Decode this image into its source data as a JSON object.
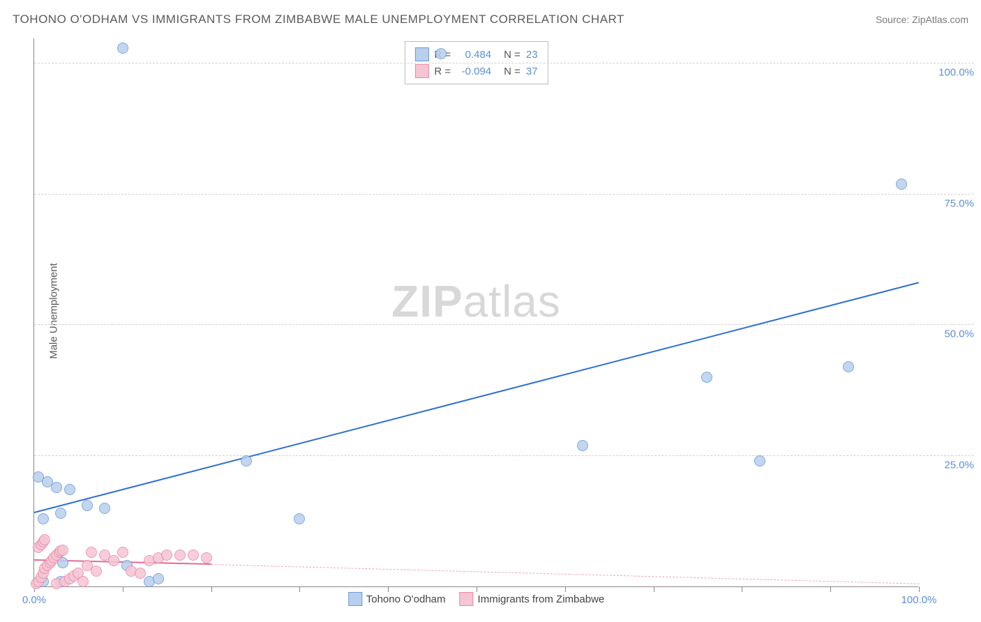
{
  "title": "TOHONO O'ODHAM VS IMMIGRANTS FROM ZIMBABWE MALE UNEMPLOYMENT CORRELATION CHART",
  "source": "Source: ZipAtlas.com",
  "ylabel": "Male Unemployment",
  "watermark": {
    "bold": "ZIP",
    "rest": "atlas"
  },
  "chart": {
    "type": "scatter",
    "xlim": [
      0,
      100
    ],
    "ylim": [
      0,
      105
    ],
    "xticks": [
      0,
      10,
      20,
      30,
      40,
      50,
      60,
      70,
      80,
      90,
      100
    ],
    "yticks": [
      25,
      50,
      75,
      100
    ],
    "ytick_labels": [
      "25.0%",
      "50.0%",
      "75.0%",
      "100.0%"
    ],
    "xtick_labels": {
      "0": "0.0%",
      "100": "100.0%"
    },
    "background": "#ffffff",
    "grid_color": "#d0d0d0",
    "axis_color": "#888888",
    "tick_font_color": "#5b8fd6",
    "label_font_color": "#5a5a5a"
  },
  "series": [
    {
      "name": "Tohono O'odham",
      "color_fill": "#b8d0ee",
      "color_stroke": "#6a9bd8",
      "marker_size": 14,
      "R": "0.484",
      "N": "23",
      "trend": {
        "x1": 0,
        "y1": 14,
        "x2": 100,
        "y2": 58,
        "color": "#2f6fd0",
        "width": 2,
        "dashed_from_x": 100
      },
      "points": [
        [
          0.5,
          21
        ],
        [
          1.5,
          20
        ],
        [
          2.5,
          19
        ],
        [
          4,
          18.5
        ],
        [
          3,
          14
        ],
        [
          8,
          15
        ],
        [
          6,
          15.5
        ],
        [
          1,
          13
        ],
        [
          3.2,
          4.5
        ],
        [
          10.5,
          4
        ],
        [
          1,
          1
        ],
        [
          3,
          1
        ],
        [
          13,
          1
        ],
        [
          14,
          1.5
        ],
        [
          10,
          103
        ],
        [
          46,
          102
        ],
        [
          24,
          24
        ],
        [
          30,
          13
        ],
        [
          62,
          27
        ],
        [
          76,
          40
        ],
        [
          82,
          24
        ],
        [
          92,
          42
        ],
        [
          98,
          77
        ]
      ]
    },
    {
      "name": "Immigrants from Zimbabwe",
      "color_fill": "#f6c5d4",
      "color_stroke": "#e88aa8",
      "marker_size": 14,
      "R": "-0.094",
      "N": "37",
      "trend": {
        "x1": 0,
        "y1": 5,
        "x2": 20,
        "y2": 4.2,
        "color": "#e46a92",
        "width": 2,
        "dashed_to_x": 100,
        "dashed_to_y": 0.5
      },
      "points": [
        [
          0.2,
          0.5
        ],
        [
          0.5,
          1
        ],
        [
          0.8,
          1.8
        ],
        [
          1,
          2.5
        ],
        [
          1.2,
          3.5
        ],
        [
          1.5,
          4
        ],
        [
          1.8,
          4.5
        ],
        [
          2,
          5
        ],
        [
          2.2,
          5.5
        ],
        [
          2.5,
          6
        ],
        [
          2.8,
          6.5
        ],
        [
          3,
          6.8
        ],
        [
          3.2,
          7
        ],
        [
          0.5,
          7.5
        ],
        [
          0.8,
          8
        ],
        [
          1,
          8.5
        ],
        [
          1.2,
          9
        ],
        [
          2.5,
          0.5
        ],
        [
          3.5,
          1
        ],
        [
          4,
          1.5
        ],
        [
          4.5,
          2
        ],
        [
          5,
          2.5
        ],
        [
          5.5,
          1
        ],
        [
          6,
          4
        ],
        [
          6.5,
          6.5
        ],
        [
          7,
          3
        ],
        [
          8,
          6
        ],
        [
          9,
          5
        ],
        [
          10,
          6.5
        ],
        [
          11,
          3
        ],
        [
          12,
          2.5
        ],
        [
          13,
          5
        ],
        [
          14,
          5.5
        ],
        [
          15,
          6
        ],
        [
          16.5,
          6
        ],
        [
          18,
          6
        ],
        [
          19.5,
          5.5
        ]
      ]
    }
  ],
  "legend_bottom": [
    {
      "label": "Tohono O'odham",
      "fill": "#b8d0ee",
      "stroke": "#6a9bd8"
    },
    {
      "label": "Immigrants from Zimbabwe",
      "fill": "#f6c5d4",
      "stroke": "#e88aa8"
    }
  ]
}
